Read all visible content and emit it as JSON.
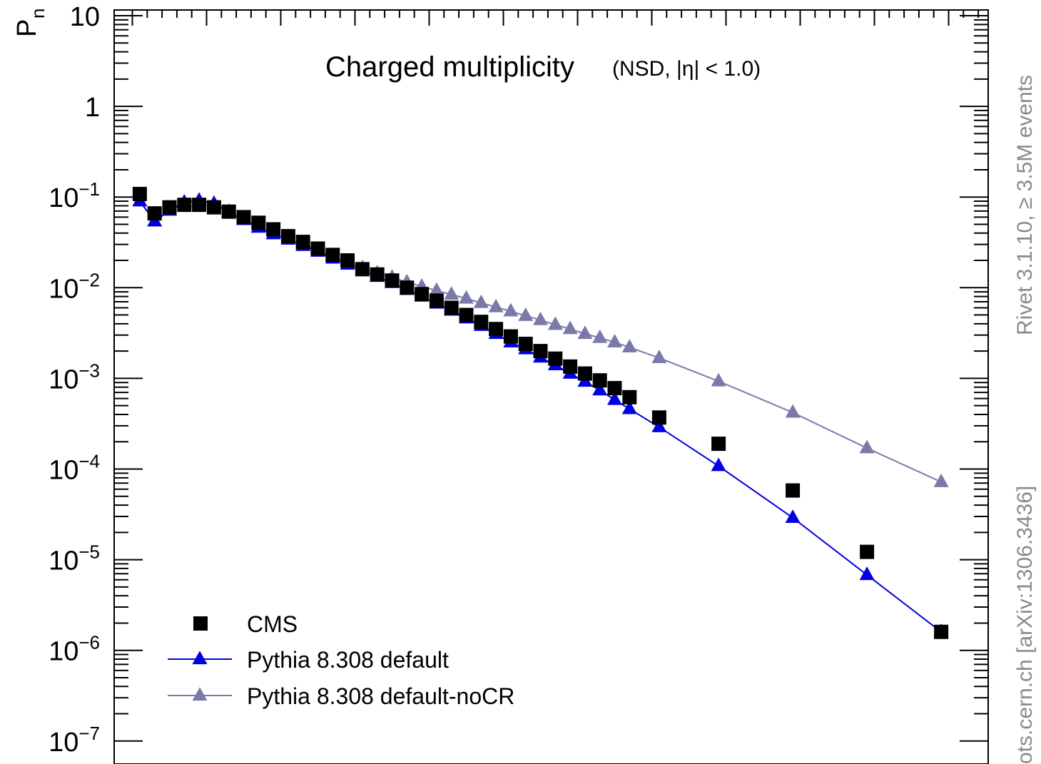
{
  "chart_data": {
    "type": "scatter",
    "title": "Charged multiplicity",
    "subtitle": "(NSD, |η| < 1.0)",
    "ylabel": "P",
    "ylabel_subscript": "n",
    "xlabel": "",
    "yscale": "log",
    "ylim": [
      1e-07,
      10
    ],
    "xlim": [
      0,
      59
    ],
    "y_ticks": [
      {
        "value": 10,
        "label": "10"
      },
      {
        "value": 1,
        "label": "1"
      },
      {
        "value": 0.1,
        "base": "10",
        "exp": "−1"
      },
      {
        "value": 0.01,
        "base": "10",
        "exp": "−2"
      },
      {
        "value": 0.001,
        "base": "10",
        "exp": "−3"
      },
      {
        "value": 0.0001,
        "base": "10",
        "exp": "−4"
      },
      {
        "value": 1e-05,
        "base": "10",
        "exp": "−5"
      },
      {
        "value": 1e-06,
        "base": "10",
        "exp": "−6"
      },
      {
        "value": 1e-07,
        "base": "10",
        "exp": "−7"
      }
    ],
    "x_major_ticks": [
      5,
      10,
      15,
      20,
      25,
      30,
      35,
      40,
      45,
      50,
      55
    ],
    "grid": false,
    "legend_position": "bottom-left",
    "series": [
      {
        "name": "CMS",
        "marker": "square",
        "line": false,
        "color": "#000000",
        "points": [
          [
            0.5,
            0.108
          ],
          [
            1.5,
            0.066
          ],
          [
            2.5,
            0.077
          ],
          [
            3.5,
            0.082
          ],
          [
            4.5,
            0.082
          ],
          [
            5.5,
            0.077
          ],
          [
            6.5,
            0.069
          ],
          [
            7.5,
            0.06
          ],
          [
            8.5,
            0.052
          ],
          [
            9.5,
            0.044
          ],
          [
            10.5,
            0.037
          ],
          [
            11.5,
            0.032
          ],
          [
            12.5,
            0.027
          ],
          [
            13.5,
            0.023
          ],
          [
            14.5,
            0.02
          ],
          [
            15.5,
            0.016
          ],
          [
            16.5,
            0.014
          ],
          [
            17.5,
            0.012
          ],
          [
            18.5,
            0.01
          ],
          [
            19.5,
            0.0085
          ],
          [
            20.5,
            0.0072
          ],
          [
            21.5,
            0.006
          ],
          [
            22.5,
            0.005
          ],
          [
            23.5,
            0.0042
          ],
          [
            24.5,
            0.0035
          ],
          [
            25.5,
            0.0029
          ],
          [
            26.5,
            0.0024
          ],
          [
            27.5,
            0.002
          ],
          [
            28.5,
            0.00165
          ],
          [
            29.5,
            0.00135
          ],
          [
            30.5,
            0.00113
          ],
          [
            31.5,
            0.00095
          ],
          [
            32.5,
            0.00078
          ],
          [
            33.5,
            0.00062
          ],
          [
            35.5,
            0.00037
          ],
          [
            39.5,
            0.00019
          ],
          [
            44.5,
            5.8e-05
          ],
          [
            49.5,
            1.22e-05
          ],
          [
            54.5,
            1.6e-06
          ]
        ]
      },
      {
        "name": "Pythia 8.308 default",
        "marker": "triangle",
        "line": true,
        "color": "#0000e0",
        "points": [
          [
            0.5,
            0.09
          ],
          [
            1.5,
            0.054
          ],
          [
            2.5,
            0.071
          ],
          [
            3.5,
            0.087
          ],
          [
            4.5,
            0.091
          ],
          [
            5.5,
            0.084
          ],
          [
            6.5,
            0.068
          ],
          [
            7.5,
            0.056
          ],
          [
            8.5,
            0.046
          ],
          [
            9.5,
            0.039
          ],
          [
            10.5,
            0.034
          ],
          [
            11.5,
            0.029
          ],
          [
            12.5,
            0.025
          ],
          [
            13.5,
            0.021
          ],
          [
            14.5,
            0.018
          ],
          [
            15.5,
            0.0155
          ],
          [
            16.5,
            0.0132
          ],
          [
            17.5,
            0.0113
          ],
          [
            18.5,
            0.0095
          ],
          [
            19.5,
            0.008
          ],
          [
            20.5,
            0.0067
          ],
          [
            21.5,
            0.0056
          ],
          [
            22.5,
            0.0046
          ],
          [
            23.5,
            0.0038
          ],
          [
            24.5,
            0.0031
          ],
          [
            25.5,
            0.0025
          ],
          [
            26.5,
            0.0021
          ],
          [
            27.5,
            0.0017
          ],
          [
            28.5,
            0.0014
          ],
          [
            29.5,
            0.00113
          ],
          [
            30.5,
            0.00092
          ],
          [
            31.5,
            0.00074
          ],
          [
            32.5,
            0.00058
          ],
          [
            33.5,
            0.00046
          ],
          [
            35.5,
            0.00029
          ],
          [
            39.5,
            0.000108
          ],
          [
            44.5,
            2.9e-05
          ],
          [
            49.5,
            6.8e-06
          ],
          [
            54.5,
            1.6e-06
          ]
        ]
      },
      {
        "name": "Pythia 8.308 default-noCR",
        "marker": "triangle",
        "line": true,
        "color": "#7a7aaa",
        "points": [
          [
            0.5,
            0.09
          ],
          [
            1.5,
            0.054
          ],
          [
            2.5,
            0.071
          ],
          [
            3.5,
            0.087
          ],
          [
            4.5,
            0.092
          ],
          [
            5.5,
            0.085
          ],
          [
            6.5,
            0.069
          ],
          [
            7.5,
            0.056
          ],
          [
            8.5,
            0.047
          ],
          [
            9.5,
            0.039
          ],
          [
            10.5,
            0.034
          ],
          [
            11.5,
            0.03
          ],
          [
            12.5,
            0.026
          ],
          [
            13.5,
            0.022
          ],
          [
            14.5,
            0.019
          ],
          [
            15.5,
            0.0165
          ],
          [
            16.5,
            0.0145
          ],
          [
            17.5,
            0.013
          ],
          [
            18.5,
            0.0115
          ],
          [
            19.5,
            0.0103
          ],
          [
            20.5,
            0.0093
          ],
          [
            21.5,
            0.0084
          ],
          [
            22.5,
            0.0076
          ],
          [
            23.5,
            0.0068
          ],
          [
            24.5,
            0.0061
          ],
          [
            25.5,
            0.0055
          ],
          [
            26.5,
            0.0049
          ],
          [
            27.5,
            0.0044
          ],
          [
            28.5,
            0.0039
          ],
          [
            29.5,
            0.0035
          ],
          [
            30.5,
            0.0031
          ],
          [
            31.5,
            0.0028
          ],
          [
            32.5,
            0.0025
          ],
          [
            33.5,
            0.0022
          ],
          [
            35.5,
            0.00168
          ],
          [
            39.5,
            0.00093
          ],
          [
            44.5,
            0.00042
          ],
          [
            49.5,
            0.00017
          ],
          [
            54.5,
            7.2e-05
          ]
        ]
      }
    ]
  },
  "side_labels": {
    "right_top": "Rivet 3.1.10, ≥ 3.5M events",
    "right_bottom": "ots.cern.ch [arXiv:1306.3436]"
  }
}
